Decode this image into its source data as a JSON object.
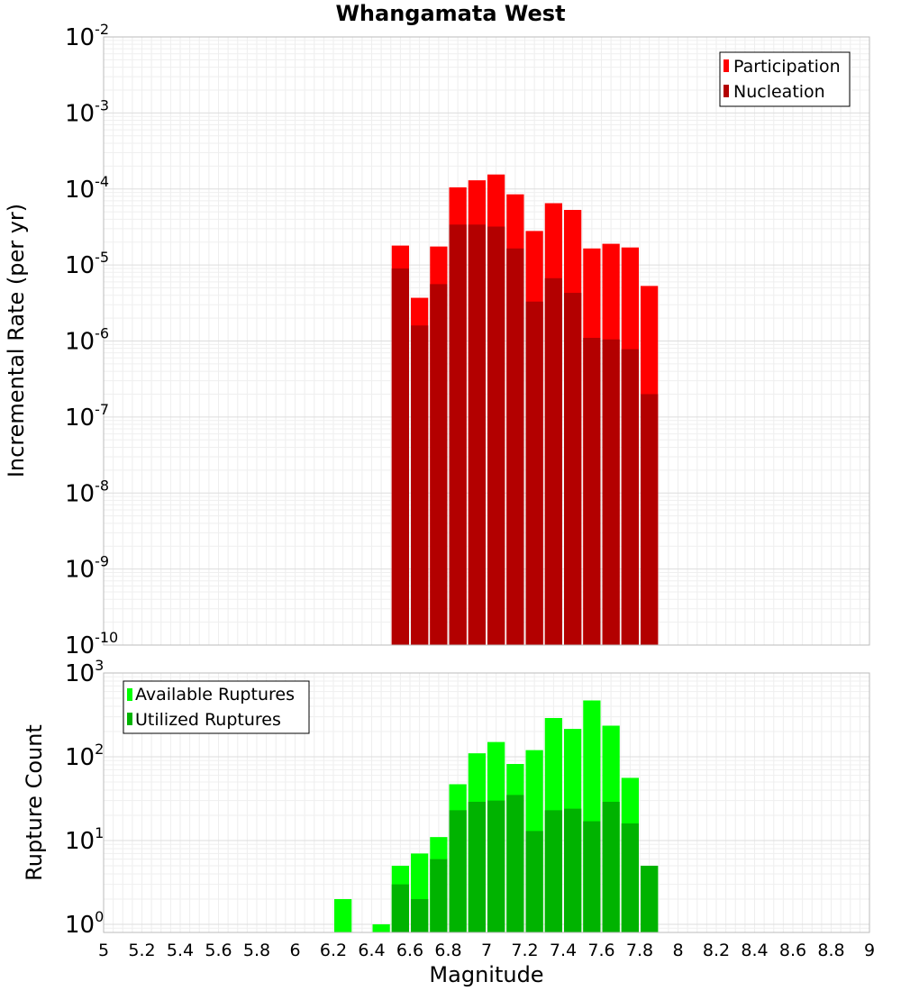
{
  "chart_data": [
    {
      "type": "bar",
      "title": "Whangamata West",
      "xlabel": "",
      "ylabel": "Incremental Rate (per yr)",
      "yscale": "log",
      "xlim": [
        5,
        9
      ],
      "ylim": [
        1e-10,
        0.01
      ],
      "ytick_labels": [
        {
          "base": "10",
          "exp": "-10",
          "value": 1e-10
        },
        {
          "base": "10",
          "exp": "-9",
          "value": 1e-09
        },
        {
          "base": "10",
          "exp": "-8",
          "value": 1e-08
        },
        {
          "base": "10",
          "exp": "-7",
          "value": 1e-07
        },
        {
          "base": "10",
          "exp": "-6",
          "value": 1e-06
        },
        {
          "base": "10",
          "exp": "-5",
          "value": 1e-05
        },
        {
          "base": "10",
          "exp": "-4",
          "value": 0.0001
        },
        {
          "base": "10",
          "exp": "-3",
          "value": 0.001
        },
        {
          "base": "10",
          "exp": "-2",
          "value": 0.01
        }
      ],
      "grid": true,
      "legend_position": "top-right",
      "x": [
        6.55,
        6.65,
        6.75,
        6.85,
        6.95,
        7.05,
        7.15,
        7.25,
        7.35,
        7.45,
        7.55,
        7.65,
        7.75,
        7.85
      ],
      "series": [
        {
          "name": "Participation",
          "color": "#ff0000",
          "values": [
            1.8e-05,
            3.7e-06,
            1.75e-05,
            0.000105,
            0.00013,
            0.000155,
            8.5e-05,
            2.8e-05,
            6.5e-05,
            5.3e-05,
            1.65e-05,
            1.9e-05,
            1.7e-05,
            5.3e-06
          ]
        },
        {
          "name": "Nucleation",
          "color": "#b30000",
          "values": [
            9e-06,
            1.6e-06,
            5.6e-06,
            3.4e-05,
            3.4e-05,
            3.2e-05,
            1.65e-05,
            3.3e-06,
            6.7e-06,
            4.3e-06,
            1.1e-06,
            1.05e-06,
            7.8e-07,
            2e-07
          ]
        }
      ]
    },
    {
      "type": "bar",
      "title": "",
      "xlabel": "Magnitude",
      "ylabel": "Rupture Count",
      "yscale": "log",
      "xlim": [
        5,
        9
      ],
      "ylim": [
        0.8,
        1000
      ],
      "ytick_labels": [
        {
          "base": "10",
          "exp": "0",
          "value": 1
        },
        {
          "base": "10",
          "exp": "1",
          "value": 10
        },
        {
          "base": "10",
          "exp": "2",
          "value": 100
        },
        {
          "base": "10",
          "exp": "3",
          "value": 1000
        }
      ],
      "xticks": [
        "5",
        "5.2",
        "5.4",
        "5.6",
        "5.8",
        "6",
        "6.2",
        "6.4",
        "6.6",
        "6.8",
        "7",
        "7.2",
        "7.4",
        "7.6",
        "7.8",
        "8",
        "8.2",
        "8.4",
        "8.6",
        "8.8",
        "9"
      ],
      "grid": true,
      "legend_position": "top-left",
      "x": [
        6.25,
        6.45,
        6.55,
        6.65,
        6.75,
        6.85,
        6.95,
        7.05,
        7.15,
        7.25,
        7.35,
        7.45,
        7.55,
        7.65,
        7.75,
        7.85
      ],
      "series": [
        {
          "name": "Available Ruptures",
          "color": "#00ff00",
          "values": [
            2,
            1,
            5,
            7,
            11,
            47,
            110,
            150,
            82,
            120,
            290,
            215,
            470,
            235,
            56,
            5
          ]
        },
        {
          "name": "Utilized Ruptures",
          "color": "#00b300",
          "values": [
            0,
            0,
            3,
            2,
            6,
            23,
            29,
            30,
            35,
            13,
            23,
            24,
            17,
            29,
            16,
            5
          ]
        }
      ]
    }
  ]
}
